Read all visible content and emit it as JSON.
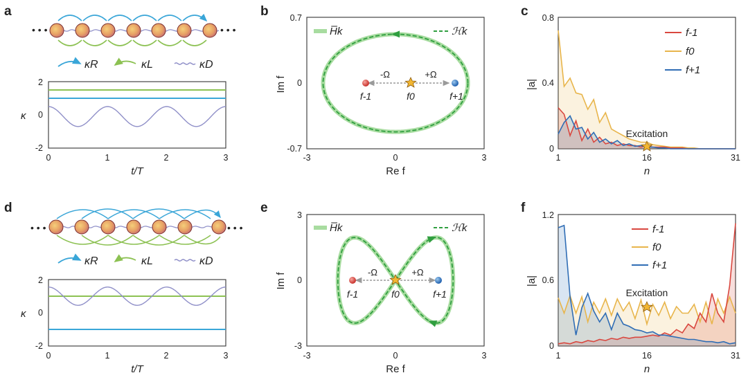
{
  "panels": {
    "a": {
      "letter": "a",
      "chain_legend": [
        "κR",
        "κL",
        "κD"
      ],
      "ylabel": "κ",
      "xlabel": "t/T",
      "xticks": [
        "0",
        "1",
        "2",
        "3"
      ],
      "yticks": [
        "2",
        "0",
        "-2"
      ]
    },
    "b": {
      "letter": "b",
      "xlabel": "Re f",
      "ylabel": "Im f",
      "xticks": [
        "-3",
        "0",
        "3"
      ],
      "yticks": [
        "0.7",
        "0",
        "-0.7"
      ],
      "legend": [
        "H̅k",
        "ℋk"
      ],
      "points": [
        "f-1",
        "f0",
        "f+1"
      ],
      "arrows": [
        "-Ω",
        "+Ω"
      ]
    },
    "c": {
      "letter": "c",
      "xlabel": "n",
      "ylabel": "|a|",
      "xticks": [
        "1",
        "16",
        "31"
      ],
      "yticks": [
        "0.8",
        "0.4",
        "0"
      ],
      "annotation": "Excitation"
    },
    "d": {
      "letter": "d",
      "chain_legend": [
        "κR",
        "κL",
        "κD"
      ],
      "ylabel": "κ",
      "xlabel": "t/T",
      "xticks": [
        "0",
        "1",
        "2",
        "3"
      ],
      "yticks": [
        "2",
        "0",
        "-2"
      ]
    },
    "e": {
      "letter": "e",
      "xlabel": "Re f",
      "ylabel": "Im f",
      "xticks": [
        "-3",
        "0",
        "3"
      ],
      "yticks": [
        "3",
        "0",
        "-3"
      ],
      "legend": [
        "H̅k",
        "ℋk"
      ],
      "points": [
        "f-1",
        "f0",
        "f+1"
      ],
      "arrows": [
        "-Ω",
        "+Ω"
      ]
    },
    "f": {
      "letter": "f",
      "xlabel": "n",
      "ylabel": "|a|",
      "xticks": [
        "1",
        "16",
        "31"
      ],
      "yticks": [
        "1.2",
        "0.6",
        "0"
      ],
      "annotation": "Excitation"
    }
  },
  "colors": {
    "kR": "#3aa6d8",
    "kL": "#8cc152",
    "kD": "#8f8fc8",
    "red": "#d9473f",
    "yellow": "#e8b54b",
    "blue": "#2f6db5",
    "green": "#2f9e3f",
    "green_light": "#a8dca0",
    "star": "#f2b632"
  },
  "chart_data": [
    {
      "panel": "a",
      "type": "line",
      "x_range": [
        0,
        3
      ],
      "ylim": [
        -2,
        2
      ],
      "series": [
        {
          "label": "κL",
          "kind": "constant",
          "value": 1.5
        },
        {
          "label": "κR",
          "kind": "constant",
          "value": 1.0
        },
        {
          "label": "κD",
          "kind": "cosine",
          "offset": -0.1,
          "amplitude": 0.6,
          "period": 1
        }
      ]
    },
    {
      "panel": "b",
      "type": "line",
      "xlim": [
        -3,
        3
      ],
      "ylim": [
        -0.7,
        0.7
      ],
      "curve": {
        "shape": "ellipse",
        "cx": 0,
        "cy": 0,
        "rx": 2.45,
        "ry": 0.52
      },
      "points": {
        "f-1": [
          -1.0,
          0
        ],
        "f0": [
          0.5,
          0
        ],
        "f+1": [
          2.0,
          0
        ]
      }
    },
    {
      "panel": "c",
      "type": "area",
      "x": [
        1,
        2,
        3,
        4,
        5,
        6,
        7,
        8,
        9,
        10,
        11,
        12,
        13,
        14,
        15,
        16,
        17,
        18,
        19,
        20,
        21,
        22,
        23,
        24,
        25,
        26,
        27,
        28,
        29,
        30,
        31
      ],
      "ylim": [
        0,
        0.8
      ],
      "series": [
        {
          "name": "f-1",
          "values": [
            0.25,
            0.21,
            0.08,
            0.17,
            0.05,
            0.12,
            0.04,
            0.07,
            0.03,
            0.04,
            0.02,
            0.03,
            0.02,
            0.02,
            0.01,
            0.02,
            0.01,
            0.01,
            0.01,
            0.005,
            0.005,
            0.005,
            0,
            0,
            0,
            0,
            0,
            0,
            0,
            0,
            0
          ]
        },
        {
          "name": "f0",
          "values": [
            0.72,
            0.38,
            0.43,
            0.34,
            0.33,
            0.24,
            0.3,
            0.16,
            0.22,
            0.12,
            0.1,
            0.08,
            0.06,
            0.05,
            0.04,
            0.04,
            0.025,
            0.02,
            0.015,
            0.01,
            0.01,
            0.01,
            0.005,
            0.005,
            0,
            0,
            0,
            0,
            0,
            0,
            0
          ]
        },
        {
          "name": "f+1",
          "values": [
            0.09,
            0.16,
            0.2,
            0.12,
            0.13,
            0.06,
            0.1,
            0.04,
            0.06,
            0.03,
            0.05,
            0.02,
            0.03,
            0.015,
            0.02,
            0.01,
            0.01,
            0.005,
            0.005,
            0,
            0,
            0,
            0,
            0,
            0,
            0,
            0,
            0,
            0,
            0,
            0
          ]
        }
      ],
      "annotation": {
        "text": "Excitation",
        "x": 16,
        "y": 0.02
      }
    },
    {
      "panel": "d",
      "type": "line",
      "x_range": [
        0,
        3
      ],
      "ylim": [
        -2,
        2
      ],
      "series": [
        {
          "label": "κL",
          "kind": "constant",
          "value": 1.0
        },
        {
          "label": "κR",
          "kind": "constant",
          "value": -1.0
        },
        {
          "label": "κD",
          "kind": "cosine",
          "offset": 1.0,
          "amplitude": 0.55,
          "period": 1
        }
      ]
    },
    {
      "panel": "e",
      "type": "line",
      "xlim": [
        -3,
        3
      ],
      "ylim": [
        -3,
        3
      ],
      "curve": {
        "shape": "figure-eight",
        "ax": 1.95,
        "ay": 2.3
      },
      "points": {
        "f-1": [
          -1.4,
          0
        ],
        "f0": [
          0,
          0
        ],
        "f+1": [
          1.5,
          0
        ]
      }
    },
    {
      "panel": "f",
      "type": "area",
      "x": [
        1,
        2,
        3,
        4,
        5,
        6,
        7,
        8,
        9,
        10,
        11,
        12,
        13,
        14,
        15,
        16,
        17,
        18,
        19,
        20,
        21,
        22,
        23,
        24,
        25,
        26,
        27,
        28,
        29,
        30,
        31
      ],
      "ylim": [
        0,
        1.2
      ],
      "series": [
        {
          "name": "f-1",
          "values": [
            0.02,
            0.03,
            0.02,
            0.04,
            0.03,
            0.05,
            0.04,
            0.06,
            0.05,
            0.07,
            0.06,
            0.08,
            0.07,
            0.08,
            0.08,
            0.09,
            0.1,
            0.09,
            0.12,
            0.1,
            0.15,
            0.12,
            0.2,
            0.16,
            0.3,
            0.22,
            0.48,
            0.3,
            0.22,
            0.55,
            1.12
          ]
        },
        {
          "name": "f0",
          "values": [
            0.44,
            0.3,
            0.46,
            0.3,
            0.45,
            0.22,
            0.4,
            0.3,
            0.43,
            0.28,
            0.43,
            0.32,
            0.4,
            0.25,
            0.42,
            0.2,
            0.38,
            0.28,
            0.4,
            0.25,
            0.36,
            0.3,
            0.3,
            0.38,
            0.22,
            0.4,
            0.2,
            0.43,
            0.3,
            0.45,
            0.3
          ]
        },
        {
          "name": "f+1",
          "values": [
            1.08,
            1.1,
            0.45,
            0.1,
            0.35,
            0.48,
            0.32,
            0.22,
            0.3,
            0.15,
            0.3,
            0.2,
            0.18,
            0.15,
            0.14,
            0.12,
            0.13,
            0.1,
            0.1,
            0.09,
            0.08,
            0.07,
            0.06,
            0.06,
            0.05,
            0.04,
            0.04,
            0.03,
            0.04,
            0.02,
            0.03
          ]
        }
      ],
      "annotation": {
        "text": "Excitation",
        "x": 16,
        "y": 0.33
      }
    }
  ]
}
